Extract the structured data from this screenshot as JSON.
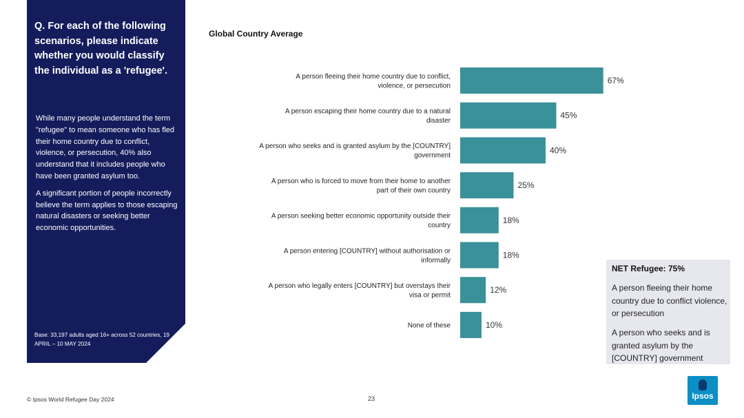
{
  "left_panel": {
    "question": "Q. For each of the following scenarios, please indicate whether you would classify the individual as a 'refugee'.",
    "paragraph_1": "While many people understand the term \"refugee\" to mean someone who has fled their home country due to conflict, violence, or persecution, 40% also understand that it includes people who have been granted asylum too.",
    "paragraph_2": "A significant portion of people incorrectly believe the term applies to those escaping natural disasters or seeking better economic opportunities.",
    "base": "Base: 33,197 adults aged 16+ across 52 countries, 19 APRIL – 10 MAY 2024"
  },
  "net_box": {
    "title": "NET Refugee: 75%",
    "item_1": "A person fleeing their home country due to conflict violence, or persecution",
    "item_2": "A person who seeks and is granted asylum by the [COUNTRY] government"
  },
  "footer": {
    "source": "© Ipsos World Refugee Day 2024",
    "page_number": "23",
    "logo_text": "Ipsos"
  },
  "colors": {
    "bar": "#3a9199",
    "panel": "#141c5c"
  },
  "chart_data": {
    "type": "bar",
    "orientation": "horizontal",
    "title": "Global Country Average",
    "categories": [
      "A person fleeing their home country due to conflict, violence, or persecution",
      "A person escaping their home country due to a natural disaster",
      "A person who seeks and is granted asylum by the [COUNTRY] government",
      "A person who is forced to move from their home to another part of their own country",
      "A person seeking better economic opportunity outside their country",
      "A person entering [COUNTRY] without authorisation or informally",
      "A person who legally enters [COUNTRY] but overstays their visa or permit",
      "None of these"
    ],
    "values": [
      67,
      45,
      40,
      25,
      18,
      18,
      12,
      10
    ],
    "data_labels": [
      "67%",
      "45%",
      "40%",
      "25%",
      "18%",
      "18%",
      "12%",
      "10%"
    ],
    "xlim": [
      0,
      100
    ],
    "grid": false,
    "legend": "none"
  }
}
